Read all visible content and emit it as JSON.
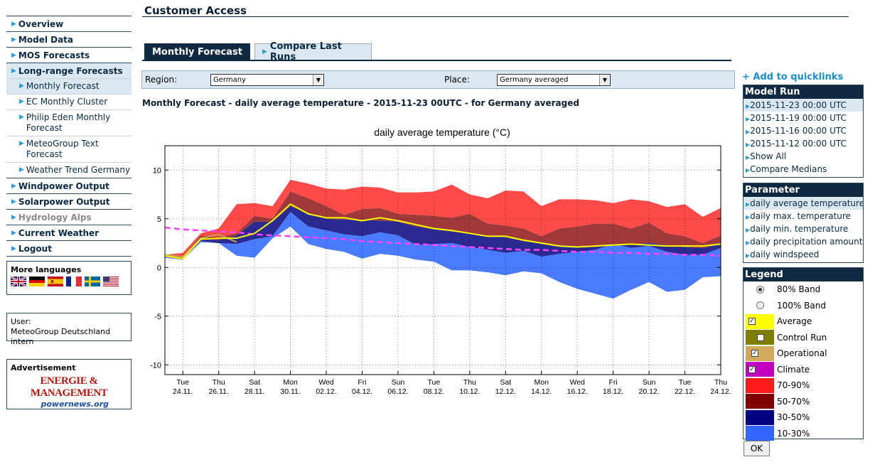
{
  "header": {
    "title": "Customer Access"
  },
  "nav": {
    "items": [
      {
        "label": "Overview"
      },
      {
        "label": "Model Data"
      },
      {
        "label": "MOS Forecasts"
      },
      {
        "label": "Long-range Forecasts"
      }
    ],
    "sub_items": [
      {
        "label": "Monthly Forecast"
      },
      {
        "label": "EC Monthly Cluster"
      },
      {
        "label": "Philip Eden Monthly Forecast"
      },
      {
        "label": "MeteoGroup Text Forecast"
      },
      {
        "label": "Weather Trend Germany"
      }
    ],
    "items2": [
      {
        "label": "Windpower Output"
      },
      {
        "label": "Solarpower Output"
      },
      {
        "label": "Hydrology Alps"
      },
      {
        "label": "Current Weather"
      },
      {
        "label": "Logout"
      }
    ]
  },
  "languages": {
    "title": "More languages",
    "flags": [
      "flag-uk",
      "flag-de",
      "flag-es",
      "flag-fr",
      "flag-se",
      "flag-us"
    ]
  },
  "user": {
    "label": "User:",
    "name": "MeteoGroup Deutschland intern"
  },
  "advertisement": {
    "title": "Advertisement",
    "logo_top": "ENERGIE & MANAGEMENT",
    "logo_bottom": "powernews.org"
  },
  "tabs": {
    "monthly": "Monthly Forecast",
    "compare": "Compare Last Runs"
  },
  "filters": {
    "region_label": "Region:",
    "region_value": "Germany",
    "place_label": "Place:",
    "place_value": "Germany averaged"
  },
  "forecast_heading": "Monthly Forecast - daily average temperature - 2015-11-23 00UTC - for Germany averaged",
  "quicklinks": "+ Add to quicklinks",
  "model_run": {
    "title": "Model Run",
    "items": [
      "2015-11-23 00:00 UTC",
      "2015-11-19 00:00 UTC",
      "2015-11-16 00:00 UTC",
      "2015-11-12 00:00 UTC",
      "Show All",
      "Compare Medians"
    ]
  },
  "parameter": {
    "title": "Parameter",
    "items": [
      "daily average temperature",
      "daily max. temperature",
      "daily min. temperature",
      "daily precipitation amount",
      "daily windspeed"
    ]
  },
  "legend": {
    "title": "Legend",
    "rows": [
      {
        "label": "80% Band",
        "kind": "radio",
        "checked": true
      },
      {
        "label": "100% Band",
        "kind": "radio",
        "checked": false
      },
      {
        "label": "Average",
        "kind": "check",
        "checked": true,
        "color": "#ffff00"
      },
      {
        "label": "Control Run",
        "kind": "check",
        "checked": false,
        "color": "#808000"
      },
      {
        "label": "Operational",
        "kind": "check",
        "checked": true,
        "color": "#d2a85a"
      },
      {
        "label": "Climate",
        "kind": "check",
        "checked": true,
        "color": "#c000c0"
      },
      {
        "label": "70-90%",
        "kind": "swatch",
        "color": "#ff1a1a"
      },
      {
        "label": "50-70%",
        "kind": "swatch",
        "color": "#800000"
      },
      {
        "label": "30-50%",
        "kind": "swatch",
        "color": "#000080"
      },
      {
        "label": "10-30%",
        "kind": "swatch",
        "color": "#3366ff"
      }
    ]
  },
  "ok_label": "OK",
  "chart_data": {
    "type": "area",
    "title": "daily average temperature (°C)",
    "ylim": [
      -11,
      12.5
    ],
    "yticks": [
      10,
      5,
      0,
      -5,
      -10
    ],
    "x": [
      0,
      1,
      2,
      3,
      4,
      5,
      6,
      7,
      8,
      9,
      10,
      11,
      12,
      13,
      14,
      15,
      16,
      17,
      18,
      19,
      20,
      21,
      22,
      23,
      24,
      25,
      26,
      27,
      28,
      29,
      30,
      31
    ],
    "xticks": [
      {
        "x": 1,
        "day": "Tue",
        "date": "24.11."
      },
      {
        "x": 3,
        "day": "Thu",
        "date": "26.11."
      },
      {
        "x": 5,
        "day": "Sat",
        "date": "28.11."
      },
      {
        "x": 7,
        "day": "Mon",
        "date": "30.11."
      },
      {
        "x": 9,
        "day": "Wed",
        "date": "02.12."
      },
      {
        "x": 11,
        "day": "Fri",
        "date": "04.12."
      },
      {
        "x": 13,
        "day": "Sun",
        "date": "06.12."
      },
      {
        "x": 15,
        "day": "Tue",
        "date": "08.12."
      },
      {
        "x": 17,
        "day": "Thu",
        "date": "10.12."
      },
      {
        "x": 19,
        "day": "Sat",
        "date": "12.12."
      },
      {
        "x": 21,
        "day": "Mon",
        "date": "14.12."
      },
      {
        "x": 23,
        "day": "Wed",
        "date": "16.12."
      },
      {
        "x": 25,
        "day": "Fri",
        "date": "18.12."
      },
      {
        "x": 27,
        "day": "Sun",
        "date": "20.12."
      },
      {
        "x": 29,
        "day": "Tue",
        "date": "22.12."
      },
      {
        "x": 31,
        "day": "Thu",
        "date": "24.12."
      }
    ],
    "bands": {
      "p90": [
        1.3,
        1.5,
        3.5,
        4.0,
        6.5,
        6.6,
        6.3,
        9.0,
        8.6,
        8.1,
        8.0,
        8.3,
        8.2,
        7.7,
        7.7,
        7.8,
        8.5,
        7.5,
        7.1,
        7.9,
        7.8,
        6.3,
        7.0,
        7.0,
        6.9,
        6.6,
        7.0,
        6.8,
        6.2,
        6.5,
        5.2,
        6.1
      ],
      "p70": [
        1.2,
        1.1,
        3.3,
        3.1,
        3.5,
        5.3,
        5.0,
        7.8,
        7.1,
        6.3,
        5.4,
        6.0,
        6.1,
        5.5,
        5.4,
        5.3,
        5.1,
        5.5,
        4.5,
        4.3,
        4.0,
        3.2,
        4.0,
        4.2,
        4.5,
        4.5,
        4.0,
        4.6,
        3.5,
        3.2,
        2.5,
        3.3
      ],
      "p50": [
        1.2,
        0.9,
        2.9,
        2.8,
        3.3,
        4.7,
        4.7,
        6.3,
        5.6,
        5.0,
        4.9,
        4.9,
        4.8,
        4.7,
        4.2,
        3.9,
        3.7,
        3.5,
        3.2,
        3.1,
        2.7,
        2.5,
        2.3,
        2.2,
        2.1,
        2.3,
        2.4,
        2.5,
        2.3,
        2.1,
        2.0,
        2.4
      ],
      "p30": [
        1.1,
        0.8,
        2.7,
        2.5,
        2.4,
        2.9,
        3.2,
        5.7,
        4.2,
        3.8,
        3.4,
        3.2,
        3.6,
        3.3,
        2.3,
        2.4,
        2.5,
        2.1,
        1.8,
        1.5,
        1.7,
        1.1,
        1.4,
        1.6,
        1.8,
        2.4,
        2.0,
        2.2,
        1.6,
        1.3,
        1.3,
        2.0
      ],
      "p10": [
        1.0,
        0.8,
        2.6,
        2.5,
        1.2,
        1.0,
        3.0,
        4.2,
        2.4,
        1.9,
        1.6,
        0.9,
        1.4,
        1.2,
        0.8,
        0.6,
        -0.3,
        -0.3,
        -0.5,
        -0.8,
        -0.4,
        -0.6,
        -1.5,
        -2.2,
        -2.7,
        -3.2,
        -2.3,
        -1.5,
        -2.5,
        -2.3,
        -1.0,
        -0.9
      ]
    },
    "average": [
      1.2,
      0.9,
      2.9,
      3.0,
      3.0,
      3.5,
      4.8,
      6.5,
      5.5,
      5.1,
      5.1,
      4.8,
      5.1,
      4.8,
      4.4,
      4.0,
      3.8,
      3.5,
      3.2,
      3.2,
      2.8,
      2.5,
      2.2,
      2.1,
      2.2,
      2.3,
      2.4,
      2.3,
      2.2,
      2.2,
      2.2,
      2.4
    ],
    "climate": [
      4.1,
      3.9,
      3.8,
      3.7,
      3.6,
      3.4,
      3.3,
      3.2,
      3.1,
      3.0,
      2.9,
      2.7,
      2.6,
      2.5,
      2.4,
      2.3,
      2.2,
      2.1,
      2.0,
      1.9,
      1.8,
      1.8,
      1.7,
      1.6,
      1.6,
      1.5,
      1.5,
      1.4,
      1.4,
      1.3,
      1.3,
      1.2
    ],
    "operational": [
      1.3,
      1.1,
      3.0,
      3.4,
      2.6
    ]
  }
}
